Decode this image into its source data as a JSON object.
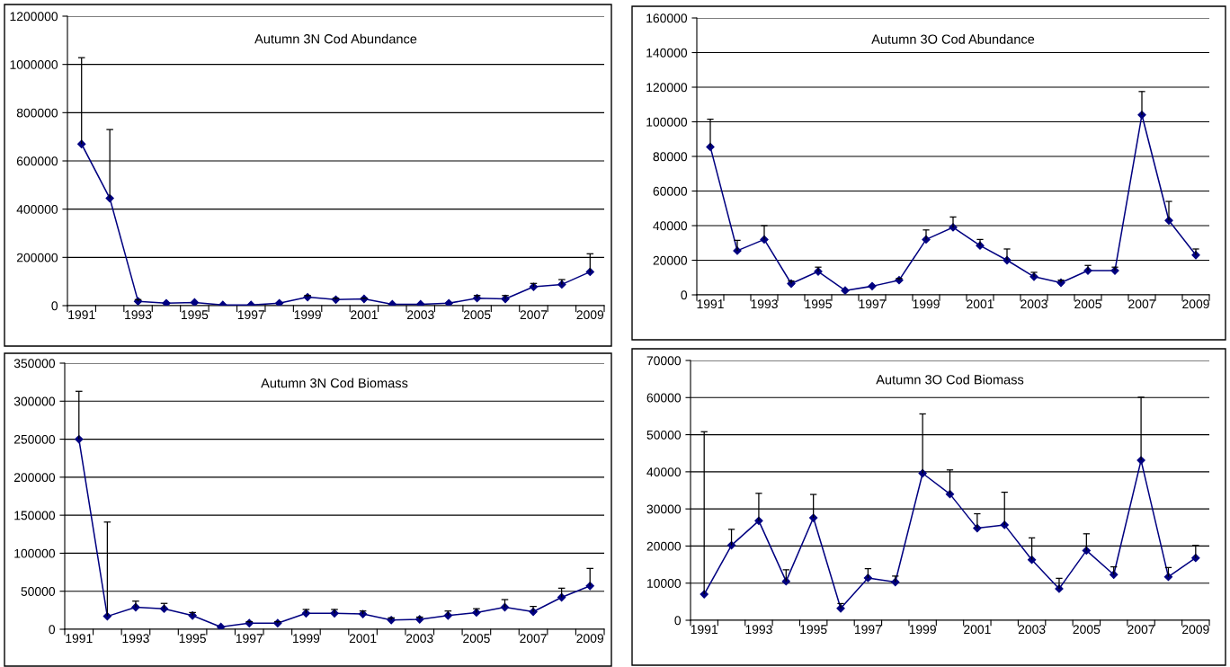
{
  "chart_data": [
    {
      "type": "line",
      "title": "Autumn 3N Cod Abundance",
      "categories": [
        "1991",
        null,
        "1993",
        null,
        "1995",
        null,
        "1997",
        null,
        "1999",
        null,
        "2001",
        null,
        "2003",
        null,
        "2005",
        null,
        "2007",
        null,
        "2009"
      ],
      "color": "#000080",
      "marker": "diamond",
      "grid": "y",
      "ylim": [
        0,
        1200000
      ],
      "yticks": [
        0,
        200000,
        400000,
        600000,
        800000,
        1000000,
        1200000
      ],
      "values": [
        670000,
        445000,
        18000,
        10000,
        13000,
        3000,
        3000,
        10000,
        35000,
        25000,
        28000,
        6000,
        6000,
        10000,
        31000,
        28000,
        78000,
        88000,
        140000
      ],
      "errors": [
        [
          670000,
          1028000
        ],
        [
          445000,
          730000
        ],
        [
          18000,
          25000
        ],
        null,
        null,
        null,
        null,
        null,
        [
          35000,
          42000
        ],
        [
          25000,
          31000
        ],
        [
          28000,
          31000
        ],
        null,
        null,
        null,
        [
          31000,
          42000
        ],
        [
          28000,
          42000
        ],
        [
          78000,
          92000
        ],
        [
          88000,
          108000
        ],
        [
          140000,
          215000
        ]
      ]
    },
    {
      "type": "line",
      "title": "Autumn 3O Cod Abundance",
      "categories": [
        "1991",
        null,
        "1993",
        null,
        "1995",
        null,
        "1997",
        null,
        "1999",
        null,
        "2001",
        null,
        "2003",
        null,
        "2005",
        null,
        "2007",
        null,
        "2009"
      ],
      "color": "#000080",
      "marker": "diamond",
      "grid": "y",
      "ylim": [
        0,
        160000
      ],
      "yticks": [
        0,
        20000,
        40000,
        60000,
        80000,
        100000,
        120000,
        140000,
        160000
      ],
      "values": [
        85500,
        25500,
        32000,
        6500,
        13500,
        2500,
        5000,
        8500,
        32000,
        39000,
        28500,
        20000,
        10500,
        7000,
        14000,
        14000,
        104000,
        43000,
        23000
      ],
      "errors": [
        [
          85500,
          101500
        ],
        [
          25500,
          31500
        ],
        [
          32000,
          40000
        ],
        [
          6500,
          8000
        ],
        [
          13500,
          16000
        ],
        null,
        null,
        [
          8500,
          9500
        ],
        [
          32000,
          37500
        ],
        [
          39000,
          45000
        ],
        [
          28500,
          32000
        ],
        [
          20000,
          26500
        ],
        [
          10500,
          13000
        ],
        [
          7000,
          8500
        ],
        [
          14000,
          17000
        ],
        [
          14000,
          16000
        ],
        [
          104000,
          117500
        ],
        [
          43000,
          54000
        ],
        [
          23000,
          26500
        ]
      ]
    },
    {
      "type": "line",
      "title": "Autumn 3N Cod Biomass",
      "categories": [
        "1991",
        null,
        "1993",
        null,
        "1995",
        null,
        "1997",
        null,
        "1999",
        null,
        "2001",
        null,
        "2003",
        null,
        "2005",
        null,
        "2007",
        null,
        "2009"
      ],
      "color": "#000080",
      "marker": "diamond",
      "grid": "y",
      "ylim": [
        0,
        350000
      ],
      "yticks": [
        0,
        50000,
        100000,
        150000,
        200000,
        250000,
        300000,
        350000
      ],
      "values": [
        250000,
        17000,
        29000,
        27000,
        18000,
        3000,
        8000,
        8000,
        21000,
        21000,
        20000,
        12000,
        13000,
        18000,
        22000,
        29000,
        23000,
        42000,
        57000
      ],
      "errors": [
        [
          250000,
          313000
        ],
        [
          17000,
          141000
        ],
        [
          29000,
          37000
        ],
        [
          27000,
          34000
        ],
        [
          18000,
          22000
        ],
        null,
        [
          8000,
          10000
        ],
        [
          8000,
          10000
        ],
        [
          21000,
          26000
        ],
        [
          21000,
          26000
        ],
        [
          20000,
          24000
        ],
        [
          12000,
          15000
        ],
        [
          13000,
          16000
        ],
        [
          18000,
          24000
        ],
        [
          22000,
          27000
        ],
        [
          29000,
          39000
        ],
        [
          23000,
          30000
        ],
        [
          42000,
          54000
        ],
        [
          57000,
          80000
        ]
      ]
    },
    {
      "type": "line",
      "title": "Autumn 3O Cod Biomass",
      "categories": [
        "1991",
        null,
        "1993",
        null,
        "1995",
        null,
        "1997",
        null,
        "1999",
        null,
        "2001",
        null,
        "2003",
        null,
        "2005",
        null,
        "2007",
        null,
        "2009"
      ],
      "color": "#000080",
      "marker": "diamond",
      "grid": "y",
      "ylim": [
        0,
        70000
      ],
      "yticks": [
        0,
        10000,
        20000,
        30000,
        40000,
        50000,
        60000,
        70000
      ],
      "values": [
        7000,
        20200,
        26800,
        10500,
        27600,
        3200,
        11400,
        10300,
        39600,
        34000,
        24800,
        25700,
        16300,
        8500,
        18800,
        12300,
        43100,
        11700,
        16800
      ],
      "errors": [
        [
          7000,
          50800
        ],
        [
          20200,
          24500
        ],
        [
          26800,
          34200
        ],
        [
          10500,
          13600
        ],
        [
          27600,
          33900
        ],
        [
          3200,
          4500
        ],
        [
          11400,
          13900
        ],
        [
          10300,
          11900
        ],
        [
          39600,
          55600
        ],
        [
          34000,
          40500
        ],
        [
          24800,
          28700
        ],
        [
          25700,
          34500
        ],
        [
          16300,
          22200
        ],
        [
          8500,
          11300
        ],
        [
          18800,
          23300
        ],
        [
          12300,
          14400
        ],
        [
          43100,
          60100
        ],
        [
          11700,
          14200
        ],
        [
          16800,
          20200
        ]
      ]
    }
  ]
}
